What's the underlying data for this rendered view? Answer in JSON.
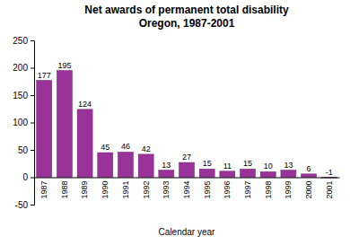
{
  "chart_data": {
    "type": "bar",
    "title": "Net awards of permanent total disability",
    "subtitle": "Oregon, 1987-2001",
    "x_label": "Calendar year",
    "categories": [
      "1987",
      "1988",
      "1989",
      "1990",
      "1991",
      "1992",
      "1993",
      "1994",
      "1995",
      "1996",
      "1997",
      "1998",
      "1999",
      "2000",
      "2001"
    ],
    "values": [
      177,
      195,
      124,
      45,
      46,
      42,
      13,
      27,
      15,
      11,
      15,
      10,
      13,
      6,
      -1
    ],
    "color": "#993399",
    "ylim": [
      -50,
      250
    ],
    "yticks": [
      -50,
      0,
      50,
      100,
      150,
      200,
      250
    ],
    "grid": false,
    "data_labels": true
  }
}
